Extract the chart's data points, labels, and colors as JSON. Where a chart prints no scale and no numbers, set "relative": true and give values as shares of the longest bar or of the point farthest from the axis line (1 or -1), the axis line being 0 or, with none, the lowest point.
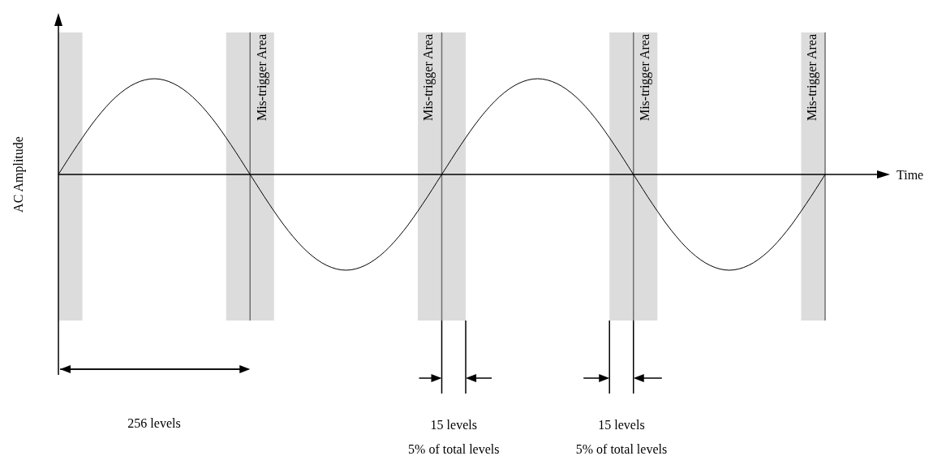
{
  "chart_data": {
    "type": "line",
    "relative": true,
    "xlabel": "Time",
    "ylabel": "AC Amplitude",
    "marker": "none",
    "line_style": "solid",
    "categories": [
      null,
      null,
      null,
      null,
      null,
      null,
      null,
      null,
      null,
      null,
      null,
      null,
      null,
      null,
      null,
      null,
      null,
      null,
      null,
      null,
      null,
      null,
      null,
      null,
      null,
      null,
      null,
      null,
      null,
      null,
      null,
      null,
      null,
      null,
      null,
      null,
      null,
      null,
      null,
      null,
      null
    ],
    "series": [
      {
        "color": "#000000",
        "values": [
          0,
          0.31,
          0.59,
          0.81,
          0.95,
          1,
          0.95,
          0.81,
          0.59,
          0.31,
          0,
          -0.31,
          -0.59,
          -0.81,
          -0.95,
          -1,
          -0.95,
          -0.81,
          -0.59,
          -0.31,
          0,
          0.31,
          0.59,
          0.81,
          0.95,
          1,
          0.95,
          0.81,
          0.59,
          0.31,
          0,
          -0.31,
          -0.59,
          -0.81,
          -0.95,
          -1,
          -0.95,
          -0.81,
          -0.59,
          -0.31,
          0
        ]
      }
    ],
    "annotations": [
      "Mis-trigger Area",
      "Mis-trigger Area",
      "Mis-trigger Area",
      "Mis-trigger Area",
      "256 levels",
      "15 levels",
      "5% of total levels",
      "15 levels",
      "5% of total levels"
    ]
  }
}
